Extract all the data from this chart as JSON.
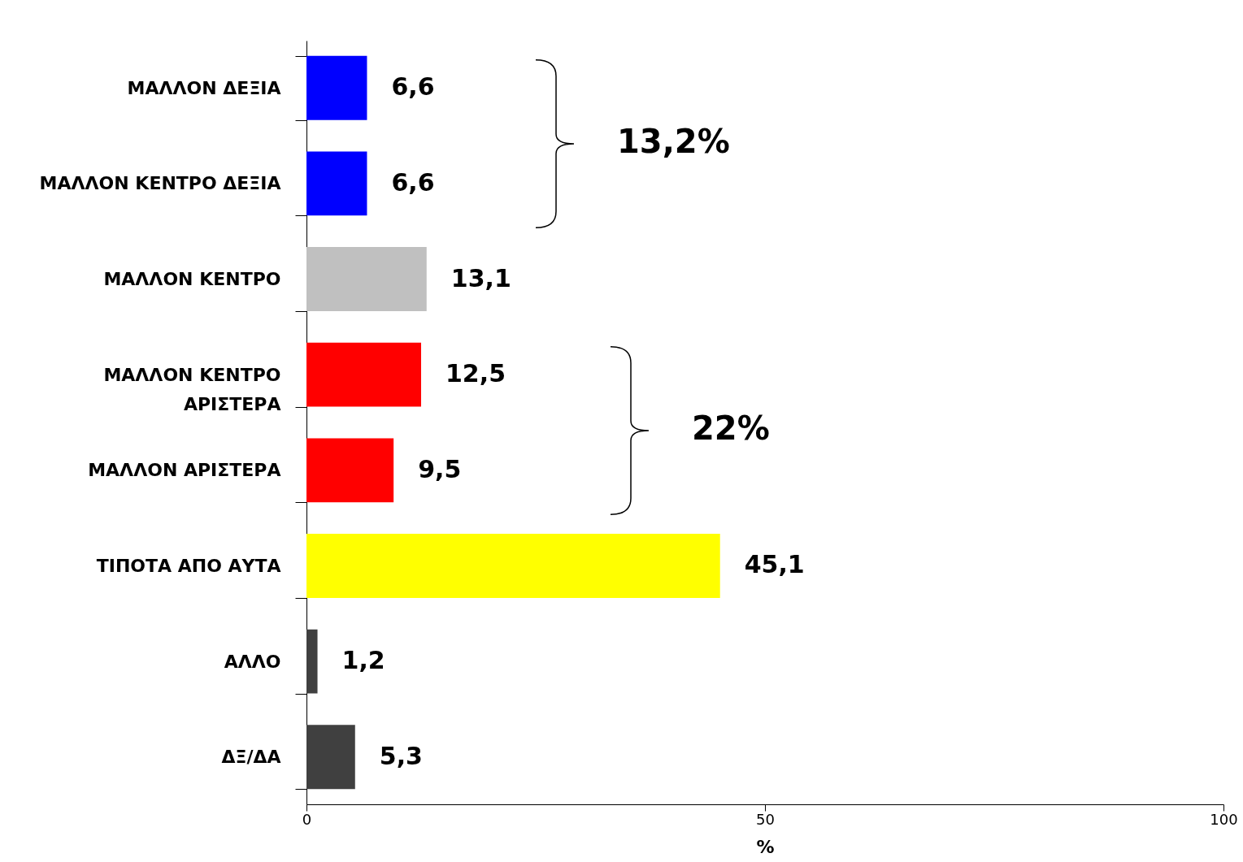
{
  "chart_data": {
    "type": "bar",
    "orientation": "horizontal",
    "categories": [
      "ΜΑΛΛΟΝ ΔΕΞΙΑ",
      "ΜΑΛΛΟΝ ΚΕΝΤΡΟ ΔΕΞΙΑ",
      "ΜΑΛΛΟΝ ΚΕΝΤΡΟ",
      "ΜΑΛΛΟΝ ΚΕΝΤΡΟ ΑΡΙΣΤΕΡΑ",
      "ΜΑΛΛΟΝ ΑΡΙΣΤΕΡΑ",
      "ΤΙΠΟΤΑ ΑΠΟ ΑΥΤΑ",
      "ΑΛΛΟ",
      "ΔΞ/ΔΑ"
    ],
    "values": [
      6.6,
      6.6,
      13.1,
      12.5,
      9.5,
      45.1,
      1.2,
      5.3
    ],
    "value_labels": [
      "6,6",
      "6,6",
      "13,1",
      "12,5",
      "9,5",
      "45,1",
      "1,2",
      "5,3"
    ],
    "colors": [
      "#0000ff",
      "#0000ff",
      "#c0c0c0",
      "#ff0000",
      "#ff0000",
      "#ffff00",
      "#404040",
      "#404040"
    ],
    "xlabel": "%",
    "xlim": [
      0,
      100
    ],
    "xticks": [
      0,
      50,
      100
    ],
    "grid": false,
    "legend": false,
    "annotations": [
      "13,2%",
      "22%"
    ]
  }
}
